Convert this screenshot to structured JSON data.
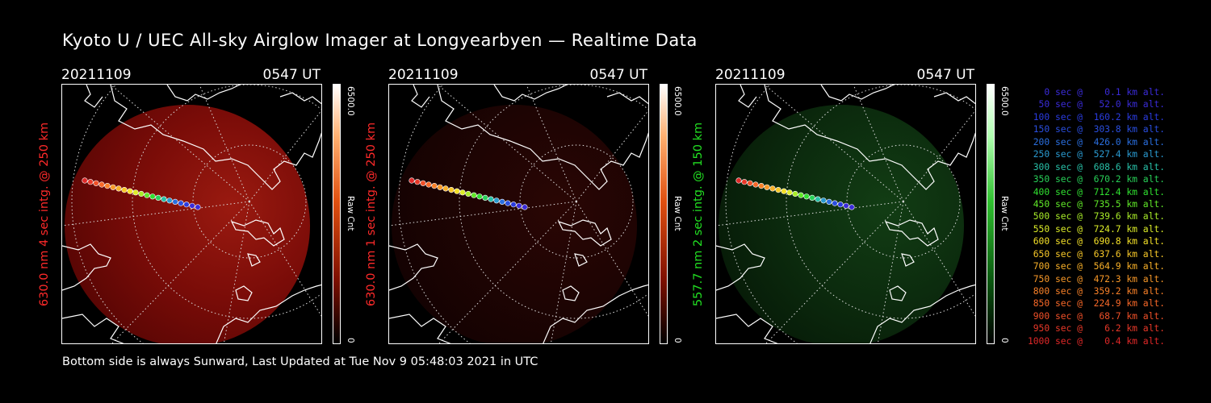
{
  "title": "Kyoto U / UEC All-sky Airglow Imager at Longyearbyen — Realtime Data",
  "footer": "Bottom side is always Sunward, Last Updated at Tue Nov  9 05:48:03 2021 in UTC",
  "colors": {
    "red_label": "#ff2020",
    "green_label": "#20e020",
    "red_image": "#8a0f0a",
    "green_image": "#0d3a10"
  },
  "panels": [
    {
      "date": "20211109",
      "time": "0547 UT",
      "ylabel": "630.0 nm 4 sec intg. @ 250 km",
      "label_color": "#ff2a2a",
      "colorbar": "red",
      "cb_max": "6500.0",
      "cb_unit": "Raw Cnt",
      "cb_min": "0",
      "image_tone": "bright-red"
    },
    {
      "date": "20211109",
      "time": "0547 UT",
      "ylabel": "630.0 nm 1 sec intg. @ 250 km",
      "label_color": "#ff2a2a",
      "colorbar": "red",
      "cb_max": "6500.0",
      "cb_unit": "Raw Cnt",
      "cb_min": "0",
      "image_tone": "dark-red"
    },
    {
      "date": "20211109",
      "time": "0547 UT",
      "ylabel": "557.7 nm 2 sec intg. @ 150 km",
      "label_color": "#22e022",
      "colorbar": "green",
      "cb_max": "6500.0",
      "cb_unit": "Raw Cnt",
      "cb_min": "0",
      "image_tone": "dark-green"
    }
  ],
  "legend": [
    {
      "text": "   0 sec @    0.1 km alt.",
      "color": "#3a2bd8"
    },
    {
      "text": "  50 sec @   52.0 km alt.",
      "color": "#3a2bd8"
    },
    {
      "text": " 100 sec @  160.2 km alt.",
      "color": "#2a3be0"
    },
    {
      "text": " 150 sec @  303.8 km alt.",
      "color": "#2a4ee0"
    },
    {
      "text": " 200 sec @  426.0 km alt.",
      "color": "#2a6fe0"
    },
    {
      "text": " 250 sec @  527.4 km alt.",
      "color": "#2a9ad0"
    },
    {
      "text": " 300 sec @  608.6 km alt.",
      "color": "#28c0a8"
    },
    {
      "text": " 350 sec @  670.2 km alt.",
      "color": "#28d058"
    },
    {
      "text": " 400 sec @  712.4 km alt.",
      "color": "#30e030"
    },
    {
      "text": " 450 sec @  735.5 km alt.",
      "color": "#60e828"
    },
    {
      "text": " 500 sec @  739.6 km alt.",
      "color": "#a8ec28"
    },
    {
      "text": " 550 sec @  724.7 km alt.",
      "color": "#dcec28"
    },
    {
      "text": " 600 sec @  690.8 km alt.",
      "color": "#f4e028"
    },
    {
      "text": " 650 sec @  637.6 km alt.",
      "color": "#f8c828"
    },
    {
      "text": " 700 sec @  564.9 km alt.",
      "color": "#f8b028"
    },
    {
      "text": " 750 sec @  472.3 km alt.",
      "color": "#f89828"
    },
    {
      "text": " 800 sec @  359.2 km alt.",
      "color": "#f88028"
    },
    {
      "text": " 850 sec @  224.9 km alt.",
      "color": "#f86828"
    },
    {
      "text": " 900 sec @   68.7 km alt.",
      "color": "#f05028"
    },
    {
      "text": " 950 sec @    6.2 km alt.",
      "color": "#e83828"
    },
    {
      "text": "1000 sec @    0.4 km alt.",
      "color": "#e02828"
    }
  ]
}
